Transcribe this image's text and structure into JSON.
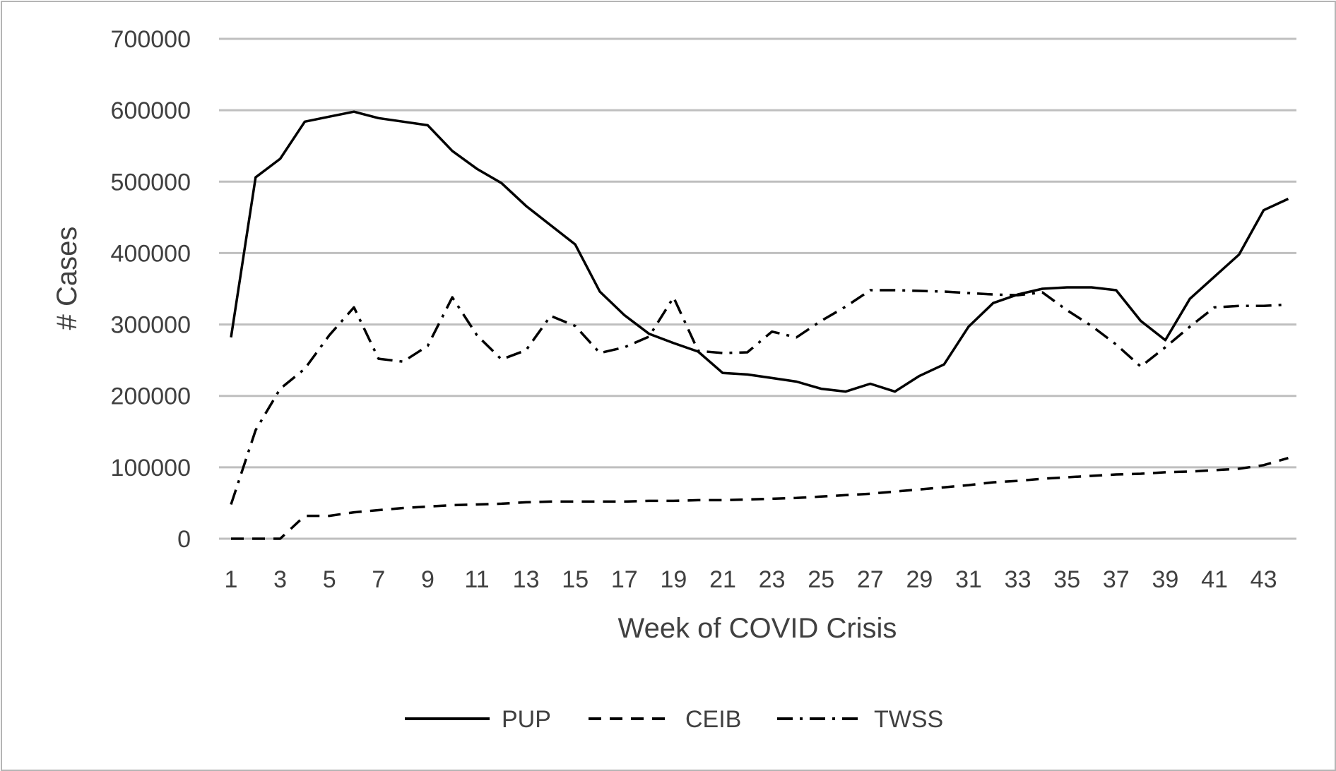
{
  "chart_data": {
    "type": "line",
    "title": "",
    "xlabel": "Week of COVID Crisis",
    "ylabel": "# Cases",
    "ylim": [
      0,
      700000
    ],
    "yticks": [
      0,
      100000,
      200000,
      300000,
      400000,
      500000,
      600000,
      700000
    ],
    "x": [
      1,
      2,
      3,
      4,
      5,
      6,
      7,
      8,
      9,
      10,
      11,
      12,
      13,
      14,
      15,
      16,
      17,
      18,
      19,
      20,
      21,
      22,
      23,
      24,
      25,
      26,
      27,
      28,
      29,
      30,
      31,
      32,
      33,
      34,
      35,
      36,
      37,
      38,
      39,
      40,
      41,
      42,
      43,
      44
    ],
    "xtick_labels": [
      "1",
      "3",
      "5",
      "7",
      "9",
      "11",
      "13",
      "15",
      "17",
      "19",
      "21",
      "23",
      "25",
      "27",
      "29",
      "31",
      "33",
      "35",
      "37",
      "39",
      "41",
      "43"
    ],
    "grid": true,
    "legend_position": "bottom",
    "series": [
      {
        "name": "PUP",
        "style": "solid",
        "color": "#000000",
        "values": [
          282000,
          506000,
          532000,
          584000,
          591000,
          598000,
          589000,
          584000,
          579000,
          543000,
          518000,
          498000,
          466000,
          439000,
          412000,
          346000,
          313000,
          287000,
          274000,
          262000,
          232000,
          230000,
          225000,
          220000,
          210000,
          206000,
          217000,
          206000,
          228000,
          244000,
          297000,
          330000,
          342000,
          350000,
          352000,
          352000,
          348000,
          305000,
          278000,
          336000,
          367000,
          398000,
          460000,
          476000
        ]
      },
      {
        "name": "CEIB",
        "style": "dashed",
        "color": "#000000",
        "values": [
          0,
          0,
          0,
          32000,
          32000,
          37000,
          40000,
          43000,
          45000,
          47000,
          48000,
          49000,
          51000,
          52000,
          52000,
          52000,
          52000,
          53000,
          53000,
          54000,
          54000,
          55000,
          56000,
          57000,
          59000,
          61000,
          63000,
          66000,
          69000,
          72000,
          75000,
          79000,
          81000,
          84000,
          86000,
          88000,
          90000,
          91000,
          93000,
          94000,
          96000,
          98000,
          103000,
          113000
        ]
      },
      {
        "name": "TWSS",
        "style": "dash-dot",
        "color": "#000000",
        "values": [
          48000,
          152000,
          210000,
          238000,
          285000,
          324000,
          252000,
          248000,
          270000,
          338000,
          285000,
          251000,
          264000,
          312000,
          298000,
          260000,
          268000,
          283000,
          338000,
          263000,
          260000,
          261000,
          290000,
          282000,
          305000,
          325000,
          348000,
          348000,
          347000,
          346000,
          344000,
          342000,
          341000,
          345000,
          320000,
          298000,
          272000,
          241000,
          268000,
          297000,
          324000,
          326000,
          326000,
          328000
        ]
      }
    ]
  }
}
